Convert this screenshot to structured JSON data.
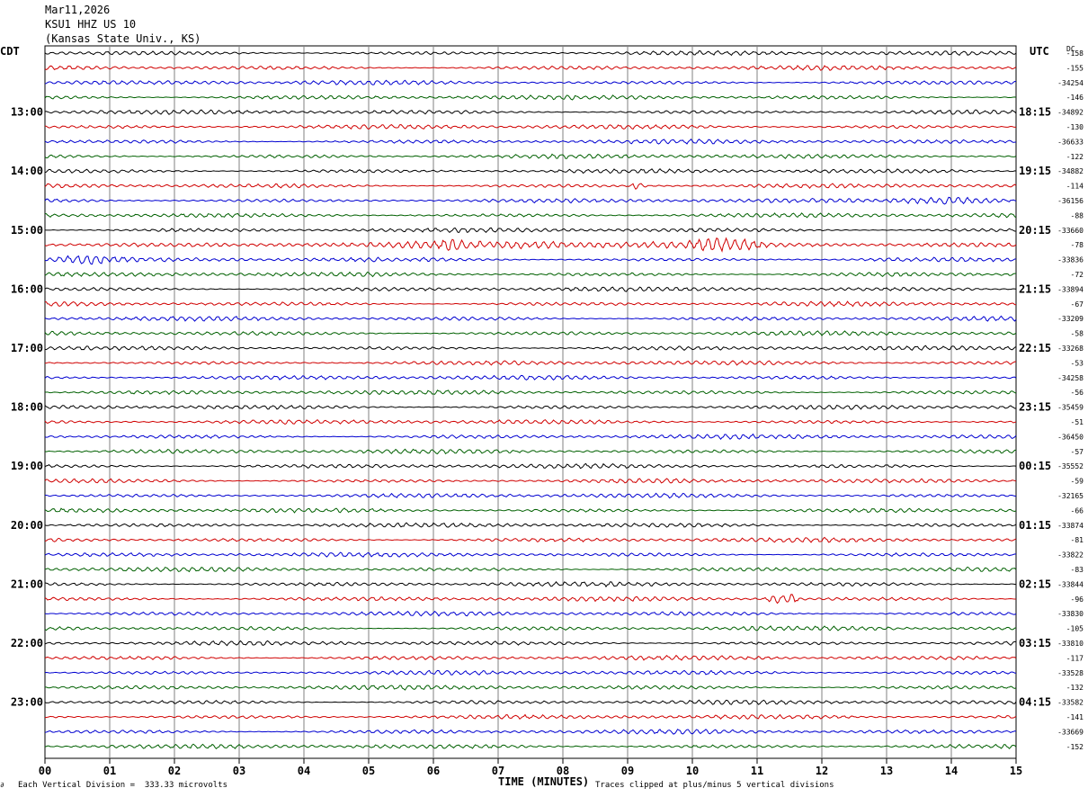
{
  "header": {
    "date": "Mar11,2026",
    "station": "KSU1 HHZ US 10",
    "location": "(Kansas State Univ., KS)"
  },
  "left_tz": "CDT",
  "right_tz": "UTC",
  "dc_label": "DC",
  "footer": {
    "scale": "Each Vertical Division =  333.33 microvolts",
    "clip": "Traces clipped at plus/minus 5 vertical divisions",
    "corner": "∂"
  },
  "chart_data": {
    "type": "line",
    "title": "KSU1 HHZ US 10",
    "xlabel": "TIME (MINUTES)",
    "x_ticks": [
      "00",
      "01",
      "02",
      "03",
      "04",
      "05",
      "06",
      "07",
      "08",
      "09",
      "10",
      "11",
      "12",
      "13",
      "14",
      "15"
    ],
    "xlim": [
      0,
      15
    ],
    "grid": true,
    "trace_colors": [
      "#000000",
      "#d00000",
      "#0000d0",
      "#006000"
    ],
    "traces_per_hour": 4,
    "trace_count": 48,
    "left_hour_labels": [
      "13:00",
      "14:00",
      "15:00",
      "16:00",
      "17:00",
      "18:00",
      "19:00",
      "20:00",
      "21:00",
      "22:00",
      "23:00"
    ],
    "right_hour_labels": [
      "18:15",
      "19:15",
      "20:15",
      "21:15",
      "22:15",
      "23:15",
      "00:15",
      "01:15",
      "02:15",
      "03:15",
      "04:15"
    ],
    "dc_offsets": [
      "-158",
      "-155",
      "-34254",
      "-146",
      "-34892",
      "-130",
      "-36633",
      "-122",
      "-34882",
      "-114",
      "-36156",
      "-88",
      "-33660",
      "-78",
      "-33836",
      "-72",
      "-33894",
      "-67",
      "-33209",
      "-58",
      "-33268",
      "-53",
      "-34258",
      "-56",
      "-35459",
      "-51",
      "-36450",
      "-57",
      "-35552",
      "-59",
      "-32165",
      "-66",
      "-33874",
      "-81",
      "-33822",
      "-83",
      "-33844",
      "-96",
      "-33830",
      "-105",
      "-33810",
      "-117",
      "-33528",
      "-132",
      "-33582",
      "-141",
      "-33669",
      "-152"
    ],
    "events": [
      {
        "trace": 13,
        "minute_start": 3.0,
        "minute_end": 11.2,
        "amplitude": 2.2
      },
      {
        "trace": 13,
        "minute_start": 6.1,
        "minute_end": 6.5,
        "amplitude": 3.4
      },
      {
        "trace": 13,
        "minute_start": 9.8,
        "minute_end": 11.2,
        "amplitude": 3.6
      },
      {
        "trace": 14,
        "minute_start": 0.0,
        "minute_end": 1.3,
        "amplitude": 2.6
      },
      {
        "trace": 37,
        "minute_start": 11.1,
        "minute_end": 11.7,
        "amplitude": 4.2
      },
      {
        "trace": 10,
        "minute_start": 12.9,
        "minute_end": 15.0,
        "amplitude": 2.4
      },
      {
        "trace": 9,
        "minute_start": 9.0,
        "minute_end": 9.3,
        "amplitude": 2.4
      }
    ]
  }
}
